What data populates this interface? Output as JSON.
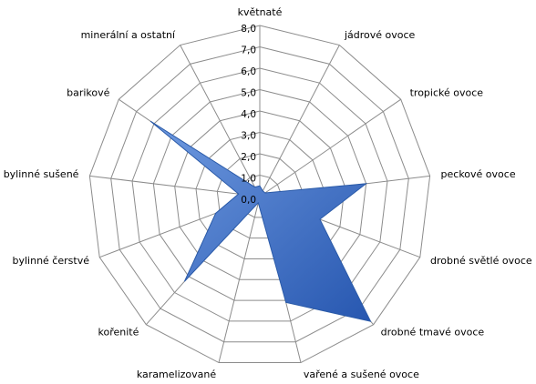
{
  "chart_data": {
    "type": "radar",
    "categories": [
      "květnaté",
      "jádrové ovoce",
      "tropické ovoce",
      "peckové ovoce",
      "drobné světlé ovoce",
      "drobné tmavé ovoce",
      "vařené a sušené ovoce",
      "karamelizované",
      "kořenité",
      "bylinné čerstvé",
      "bylinné sušené",
      "barikové",
      "minerální a ostatní"
    ],
    "values": [
      0.5,
      0.3,
      0.3,
      5,
      3,
      7.8,
      5.1,
      0.3,
      5.3,
      2.2,
      1,
      6.2,
      0.5
    ],
    "color": "#3c6fc4",
    "rlim": [
      0,
      8
    ],
    "rticks": [
      {
        "value": 0,
        "label": "0,0"
      },
      {
        "value": 1,
        "label": "1,0"
      },
      {
        "value": 2,
        "label": "2,0"
      },
      {
        "value": 3,
        "label": "3,0"
      },
      {
        "value": 4,
        "label": "4,0"
      },
      {
        "value": 5,
        "label": "5,0"
      },
      {
        "value": 6,
        "label": "6,0"
      },
      {
        "value": 7,
        "label": "7,0"
      },
      {
        "value": 8,
        "label": "8,0"
      }
    ],
    "grid": true
  }
}
